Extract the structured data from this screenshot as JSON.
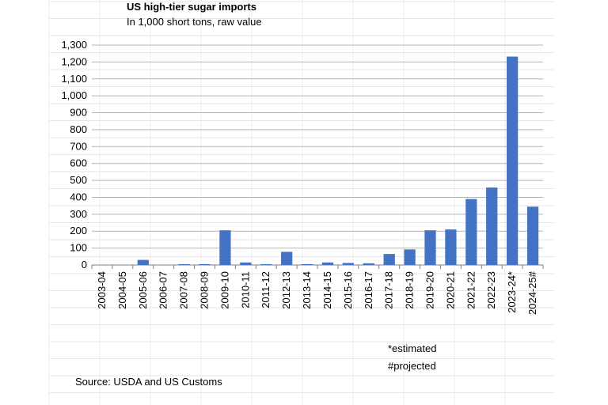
{
  "chart_data": {
    "type": "bar",
    "title": "US high-tier sugar imports",
    "subtitle": "In 1,000 short tons, raw value",
    "categories": [
      "2003-04",
      "2004-05",
      "2005-06",
      "2006-07",
      "2007-08",
      "2008-09",
      "2009-10",
      "2010-11",
      "2011-12",
      "2012-13",
      "2013-14",
      "2014-15",
      "2015-16",
      "2016-17",
      "2017-18",
      "2018-19",
      "2019-20",
      "2020-21",
      "2021-22",
      "2022-23",
      "2023-24*",
      "2024-25#"
    ],
    "values": [
      0,
      0,
      30,
      0,
      5,
      5,
      205,
      15,
      5,
      78,
      5,
      15,
      12,
      10,
      65,
      92,
      205,
      210,
      390,
      458,
      1232,
      345
    ],
    "ylim": [
      0,
      1300
    ],
    "yticks": [
      0,
      100,
      200,
      300,
      400,
      500,
      600,
      700,
      800,
      900,
      1000,
      1100,
      1200,
      1300
    ],
    "ytick_labels": [
      "0",
      "100",
      "200",
      "300",
      "400",
      "500",
      "600",
      "700",
      "800",
      "900",
      "1,000",
      "1,100",
      "1,200",
      "1,300"
    ],
    "bar_color": "#4472C4",
    "grid": true,
    "xlabel": "",
    "ylabel": "",
    "notes": [
      "*estimated",
      "#projected"
    ],
    "source": "Source: USDA and US Customs"
  }
}
